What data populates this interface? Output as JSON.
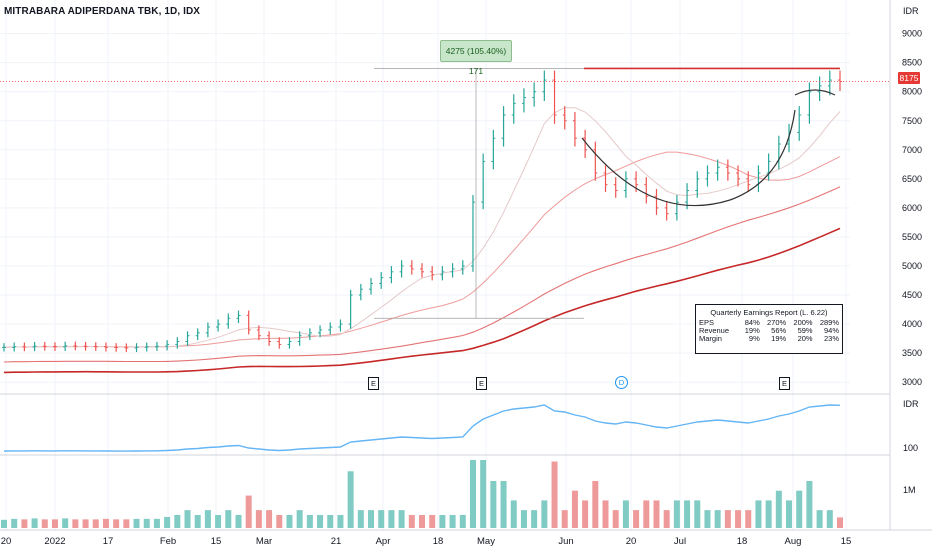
{
  "header": {
    "title": "MITRABARA ADIPERDANA TBK, 1D, IDX"
  },
  "price_axis": {
    "unit": "IDR",
    "ticks": [
      9000,
      8500,
      8000,
      7500,
      7000,
      6500,
      6000,
      5500,
      5000,
      4500,
      4000,
      3500,
      3000
    ],
    "last_price_label": "8175"
  },
  "rs_axis": {
    "unit": "IDR",
    "tick": "100"
  },
  "volume_axis": {
    "tick": "1M"
  },
  "time_axis": {
    "ticks": [
      "20",
      "2022",
      "17",
      "Feb",
      "15",
      "Mar",
      "21",
      "Apr",
      "18",
      "May",
      "Jun",
      "20",
      "Jul",
      "18",
      "Aug",
      "15"
    ]
  },
  "measure_label": "4275 (105.40%) 171",
  "events": {
    "e1": "E",
    "e2": "E",
    "d": "D",
    "e3": "E"
  },
  "earnings": {
    "title": "Quarterly Earnings Report (L. 6.22)",
    "rows": [
      {
        "label": "EPS",
        "values": [
          "84%",
          "270%",
          "200%",
          "289%"
        ]
      },
      {
        "label": "Revenue",
        "values": [
          "19%",
          "56%",
          "59%",
          "94%"
        ]
      },
      {
        "label": "Margin",
        "values": [
          "9%",
          "19%",
          "20%",
          "23%"
        ]
      }
    ]
  },
  "colors": {
    "up": "#26a69a",
    "down": "#ef5350",
    "ma_dark": "#d32f2f",
    "rs_line": "#64b5f6"
  },
  "chart_data": {
    "type": "line",
    "title": "MITRABARA ADIPERDANA TBK, 1D, IDX",
    "series": [
      {
        "name": "",
        "values": [
          3600,
          3610,
          3605,
          3620,
          3615,
          3610,
          3625,
          3620,
          3615,
          3610,
          3600,
          3595,
          3590,
          3600,
          3610,
          3620,
          3650,
          3700,
          3800,
          3850,
          3950,
          4000,
          4100,
          4150,
          3900,
          3800,
          3700,
          3650,
          3700,
          3800,
          3850,
          3900,
          3950,
          4000,
          4500,
          4600,
          4700,
          4800,
          4900,
          5000,
          4950,
          4900,
          4850,
          4900,
          4950,
          5000,
          6100,
          6800,
          7200,
          7600,
          7800,
          7900,
          8000,
          8200,
          7600,
          7500,
          7200,
          7000,
          6600,
          6400,
          6300,
          6500,
          6400,
          6200,
          6000,
          5900,
          6100,
          6300,
          6500,
          6600,
          6700,
          6600,
          6500,
          6400,
          6600,
          6800,
          7100,
          7300,
          7600,
          8000,
          8100,
          8200,
          8175
        ]
      }
    ],
    "ylim": [
      2900,
      9200
    ],
    "xlabel": "",
    "ylabel": "IDR",
    "grid": true
  }
}
